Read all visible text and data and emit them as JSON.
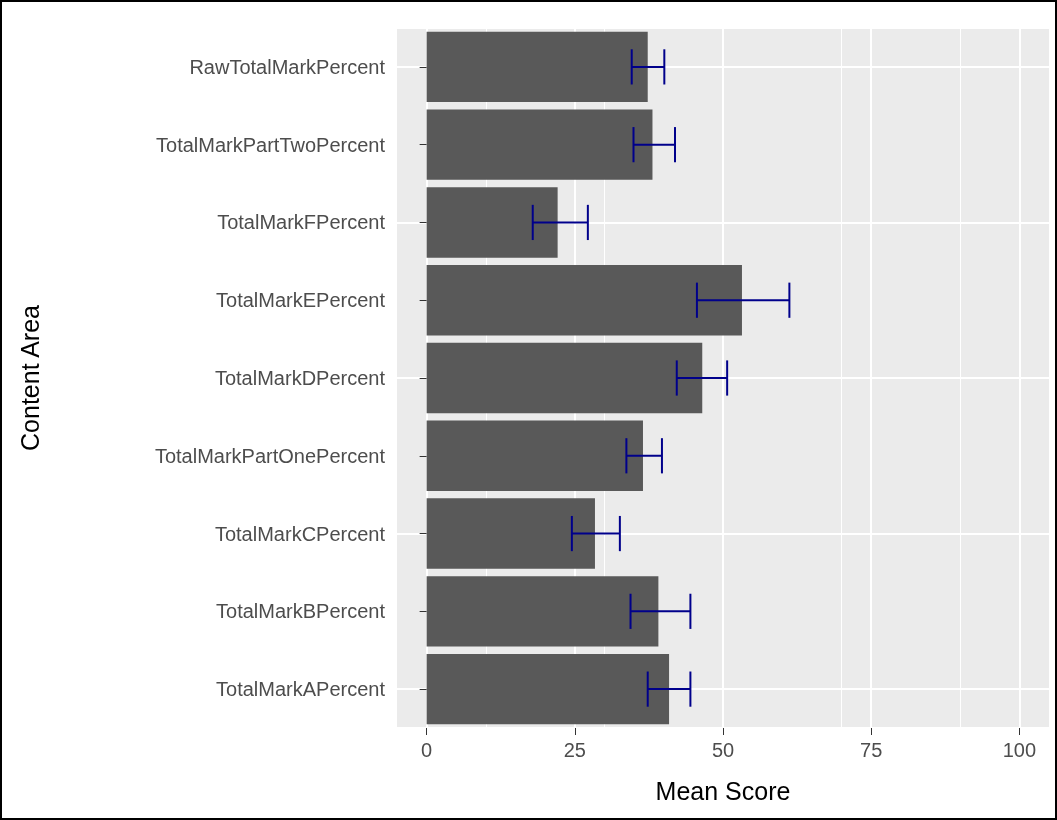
{
  "chart_data": {
    "type": "bar",
    "orientation": "horizontal",
    "xlabel": "Mean Score",
    "ylabel": "Content Area",
    "categories": [
      "RawTotalMarkPercent",
      "TotalMarkPartTwoPercent",
      "TotalMarkFPercent",
      "TotalMarkEPercent",
      "TotalMarkDPercent",
      "TotalMarkPartOnePercent",
      "TotalMarkCPercent",
      "TotalMarkBPercent",
      "TotalMarkAPercent"
    ],
    "series": [
      {
        "color": "#595959",
        "values": [
          37.3,
          38.1,
          22.1,
          53.2,
          46.5,
          36.5,
          28.4,
          39.1,
          40.9
        ],
        "errors": [
          [
            34.6,
            40.1
          ],
          [
            34.9,
            41.9
          ],
          [
            17.9,
            27.2
          ],
          [
            45.6,
            61.2
          ],
          [
            42.2,
            50.7
          ],
          [
            33.7,
            39.7
          ],
          [
            24.5,
            32.6
          ],
          [
            34.4,
            44.5
          ],
          [
            37.3,
            44.5
          ]
        ]
      }
    ],
    "xlim": [
      -5,
      105
    ],
    "xticks": [
      0,
      25,
      50,
      75,
      100
    ],
    "grid": true
  }
}
